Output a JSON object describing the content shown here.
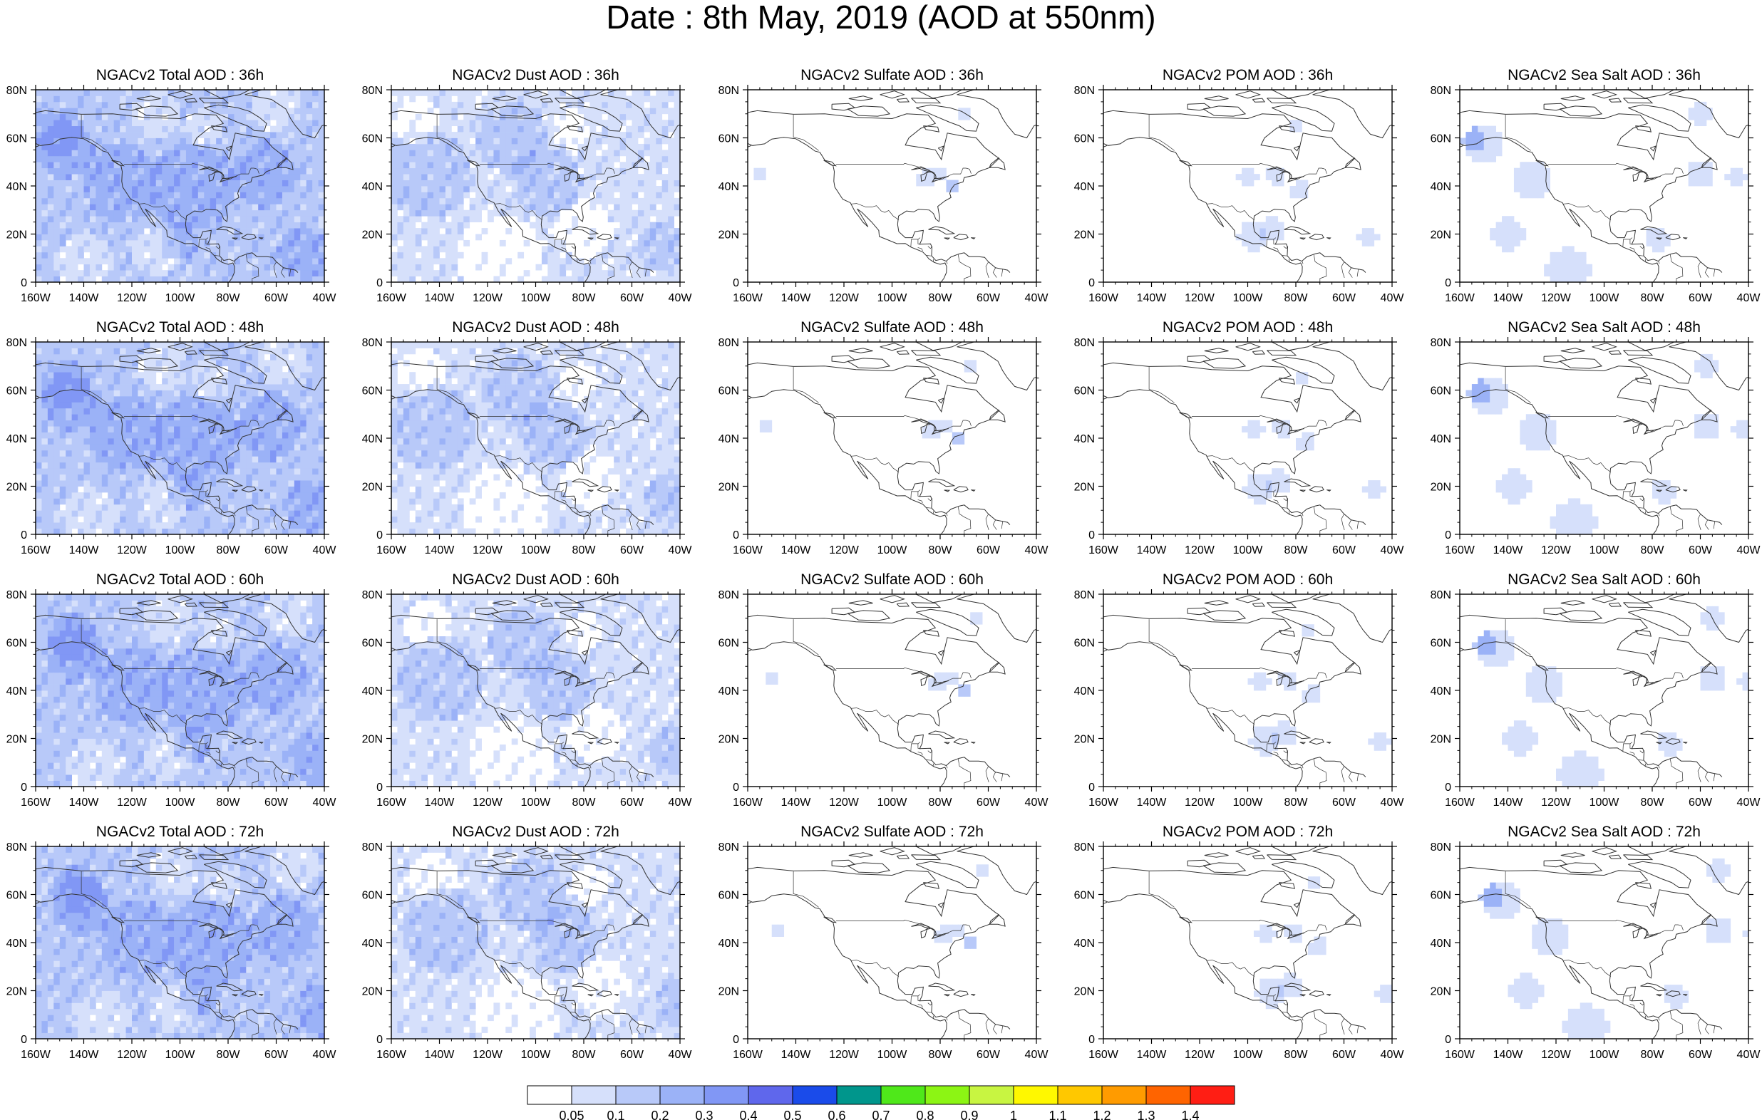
{
  "title": "Date : 8th May, 2019 (AOD at 550nm)",
  "colors": {
    "levels": [
      "#ffffff",
      "#d6e0fb",
      "#b8c9f9",
      "#9bb2f7",
      "#8197f5",
      "#5f67ec",
      "#1a4bea",
      "#00968c",
      "#4fe81a",
      "#8cf514",
      "#c8f541",
      "#fff800",
      "#ffc800",
      "#ff9b00",
      "#ff6400",
      "#ff1e14"
    ],
    "coast": "#333333"
  },
  "colorbar": {
    "labels": [
      "0.05",
      "0.1",
      "0.2",
      "0.3",
      "0.4",
      "0.5",
      "0.6",
      "0.7",
      "0.8",
      "0.9",
      "1",
      "1.1",
      "1.2",
      "1.3",
      "1.4"
    ]
  },
  "axes": {
    "lon_ticks": [
      "160W",
      "140W",
      "120W",
      "100W",
      "80W",
      "60W",
      "40W"
    ],
    "lat_ticks": [
      "80N",
      "60N",
      "40N",
      "20N",
      "0"
    ]
  },
  "panels": [
    {
      "title": "NGACv2 Total AOD : 36h",
      "species": "total",
      "hour": 36
    },
    {
      "title": "NGACv2 Dust AOD : 36h",
      "species": "dust",
      "hour": 36
    },
    {
      "title": "NGACv2 Sulfate AOD : 36h",
      "species": "sulfate",
      "hour": 36
    },
    {
      "title": "NGACv2 POM AOD : 36h",
      "species": "pom",
      "hour": 36
    },
    {
      "title": "NGACv2 Sea Salt AOD : 36h",
      "species": "seasalt",
      "hour": 36
    },
    {
      "title": "NGACv2 Total AOD : 48h",
      "species": "total",
      "hour": 48
    },
    {
      "title": "NGACv2 Dust AOD : 48h",
      "species": "dust",
      "hour": 48
    },
    {
      "title": "NGACv2 Sulfate AOD : 48h",
      "species": "sulfate",
      "hour": 48
    },
    {
      "title": "NGACv2 POM AOD : 48h",
      "species": "pom",
      "hour": 48
    },
    {
      "title": "NGACv2 Sea Salt AOD : 48h",
      "species": "seasalt",
      "hour": 48
    },
    {
      "title": "NGACv2 Total AOD : 60h",
      "species": "total",
      "hour": 60
    },
    {
      "title": "NGACv2 Dust AOD : 60h",
      "species": "dust",
      "hour": 60
    },
    {
      "title": "NGACv2 Sulfate AOD : 60h",
      "species": "sulfate",
      "hour": 60
    },
    {
      "title": "NGACv2 POM AOD : 60h",
      "species": "pom",
      "hour": 60
    },
    {
      "title": "NGACv2 Sea Salt AOD : 60h",
      "species": "seasalt",
      "hour": 60
    },
    {
      "title": "NGACv2 Total AOD : 72h",
      "species": "total",
      "hour": 72
    },
    {
      "title": "NGACv2 Dust AOD : 72h",
      "species": "dust",
      "hour": 72
    },
    {
      "title": "NGACv2 Sulfate AOD : 72h",
      "species": "sulfate",
      "hour": 72
    },
    {
      "title": "NGACv2 POM AOD : 72h",
      "species": "pom",
      "hour": 72
    },
    {
      "title": "NGACv2 Sea Salt  AOD : 72h",
      "species": "seasalt",
      "hour": 72
    }
  ]
}
